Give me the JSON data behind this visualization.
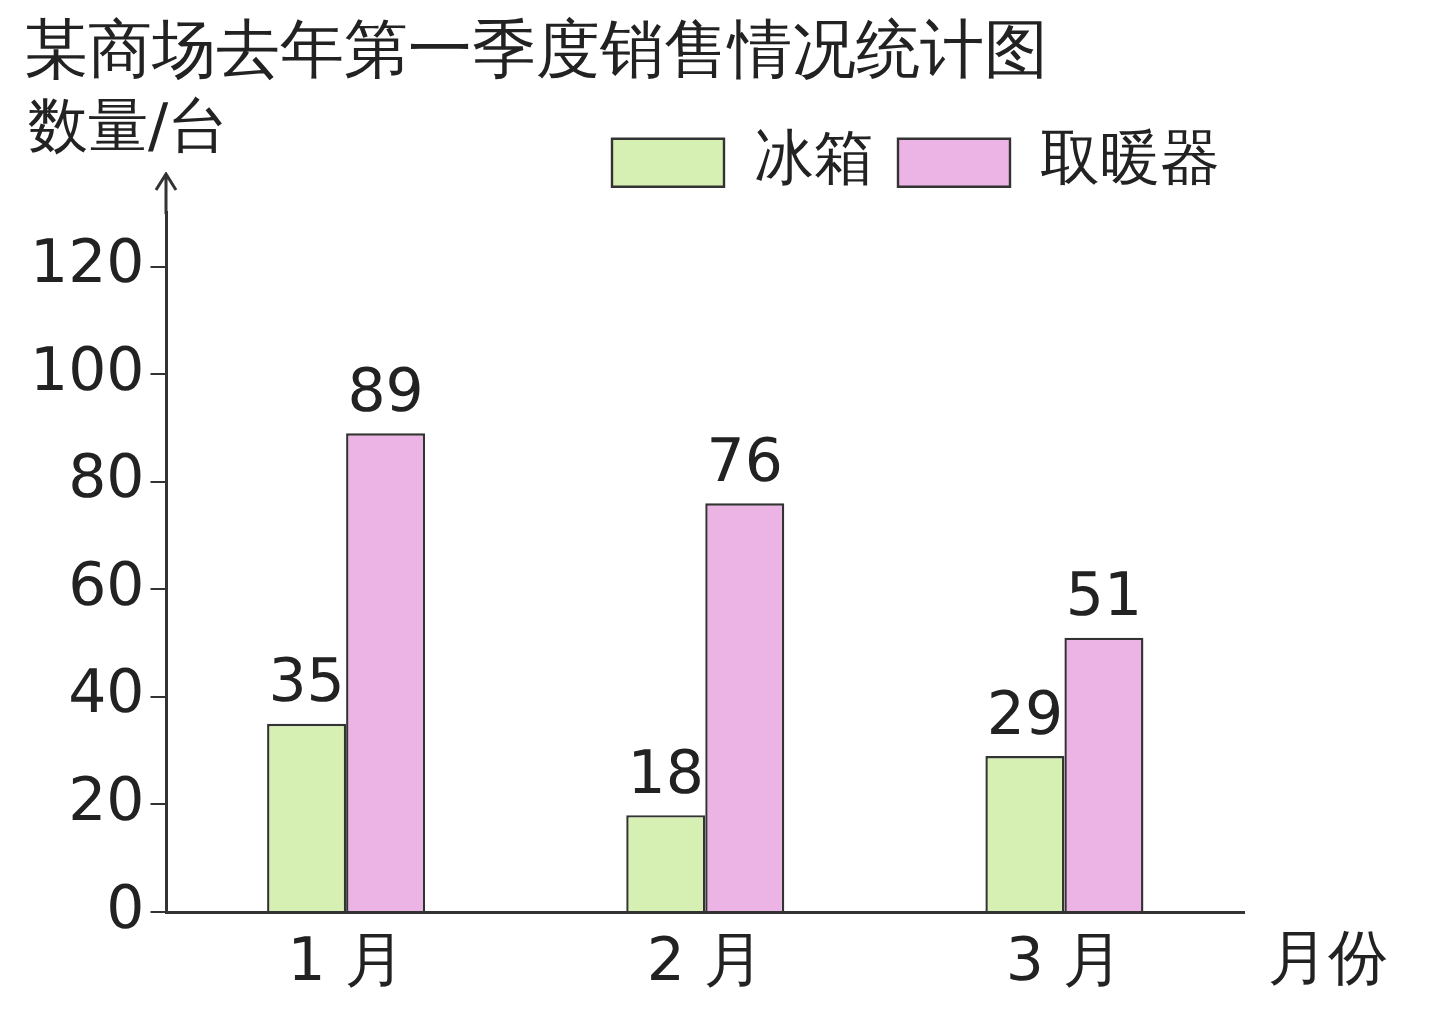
{
  "chart_data": {
    "type": "bar",
    "title": "某商场去年第一季度销售情况统计图",
    "xlabel": "月份",
    "ylabel": "数量/台",
    "categories": [
      "1 月",
      "2 月",
      "3 月"
    ],
    "series": [
      {
        "name": "冰箱",
        "color": "#d6f0b4",
        "values": [
          35,
          18,
          29
        ]
      },
      {
        "name": "取暖器",
        "color": "#ecb4e4",
        "values": [
          89,
          76,
          51
        ]
      }
    ],
    "ylim": [
      0,
      130
    ],
    "yticks": [
      0,
      20,
      40,
      60,
      80,
      100,
      120
    ],
    "data_labels": true,
    "legend": "top right",
    "grid": false
  }
}
